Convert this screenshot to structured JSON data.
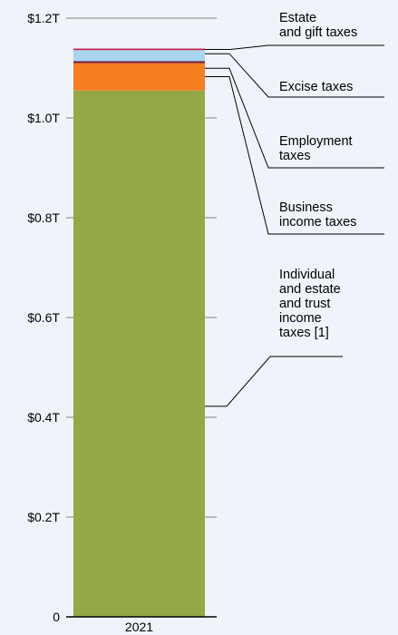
{
  "chart_data": {
    "type": "bar",
    "stacked": true,
    "categories": [
      "2021"
    ],
    "ylim": [
      0,
      1.2
    ],
    "y_ticks": [
      {
        "value": 0,
        "label": "0"
      },
      {
        "value": 0.2,
        "label": "$0.2T"
      },
      {
        "value": 0.4,
        "label": "$0.4T"
      },
      {
        "value": 0.6,
        "label": "$0.6T"
      },
      {
        "value": 0.8,
        "label": "$0.8T"
      },
      {
        "value": 1.0,
        "label": "$1.0T"
      },
      {
        "value": 1.2,
        "label": "$1.2T"
      }
    ],
    "grid": true,
    "series": [
      {
        "name": "Individual and estate and trust income taxes [1]",
        "label_lines": [
          "Individual",
          "and estate",
          "and trust",
          "income",
          "taxes [1]"
        ],
        "values": [
          1.055
        ],
        "color": "#94a845"
      },
      {
        "name": "Business income taxes",
        "label_lines": [
          "Business",
          "income taxes"
        ],
        "values": [
          0.055
        ],
        "color": "#f47e20"
      },
      {
        "name": "Employment taxes",
        "label_lines": [
          "Employment",
          "taxes"
        ],
        "values": [
          0.004
        ],
        "color": "#6e1d4a"
      },
      {
        "name": "Excise taxes",
        "label_lines": [
          "Excise taxes"
        ],
        "values": [
          0.022
        ],
        "color": "#a9d6ee"
      },
      {
        "name": "Estate and gift taxes",
        "label_lines": [
          "Estate",
          "and gift taxes"
        ],
        "values": [
          0.003
        ],
        "color": "#c8194b"
      }
    ]
  }
}
